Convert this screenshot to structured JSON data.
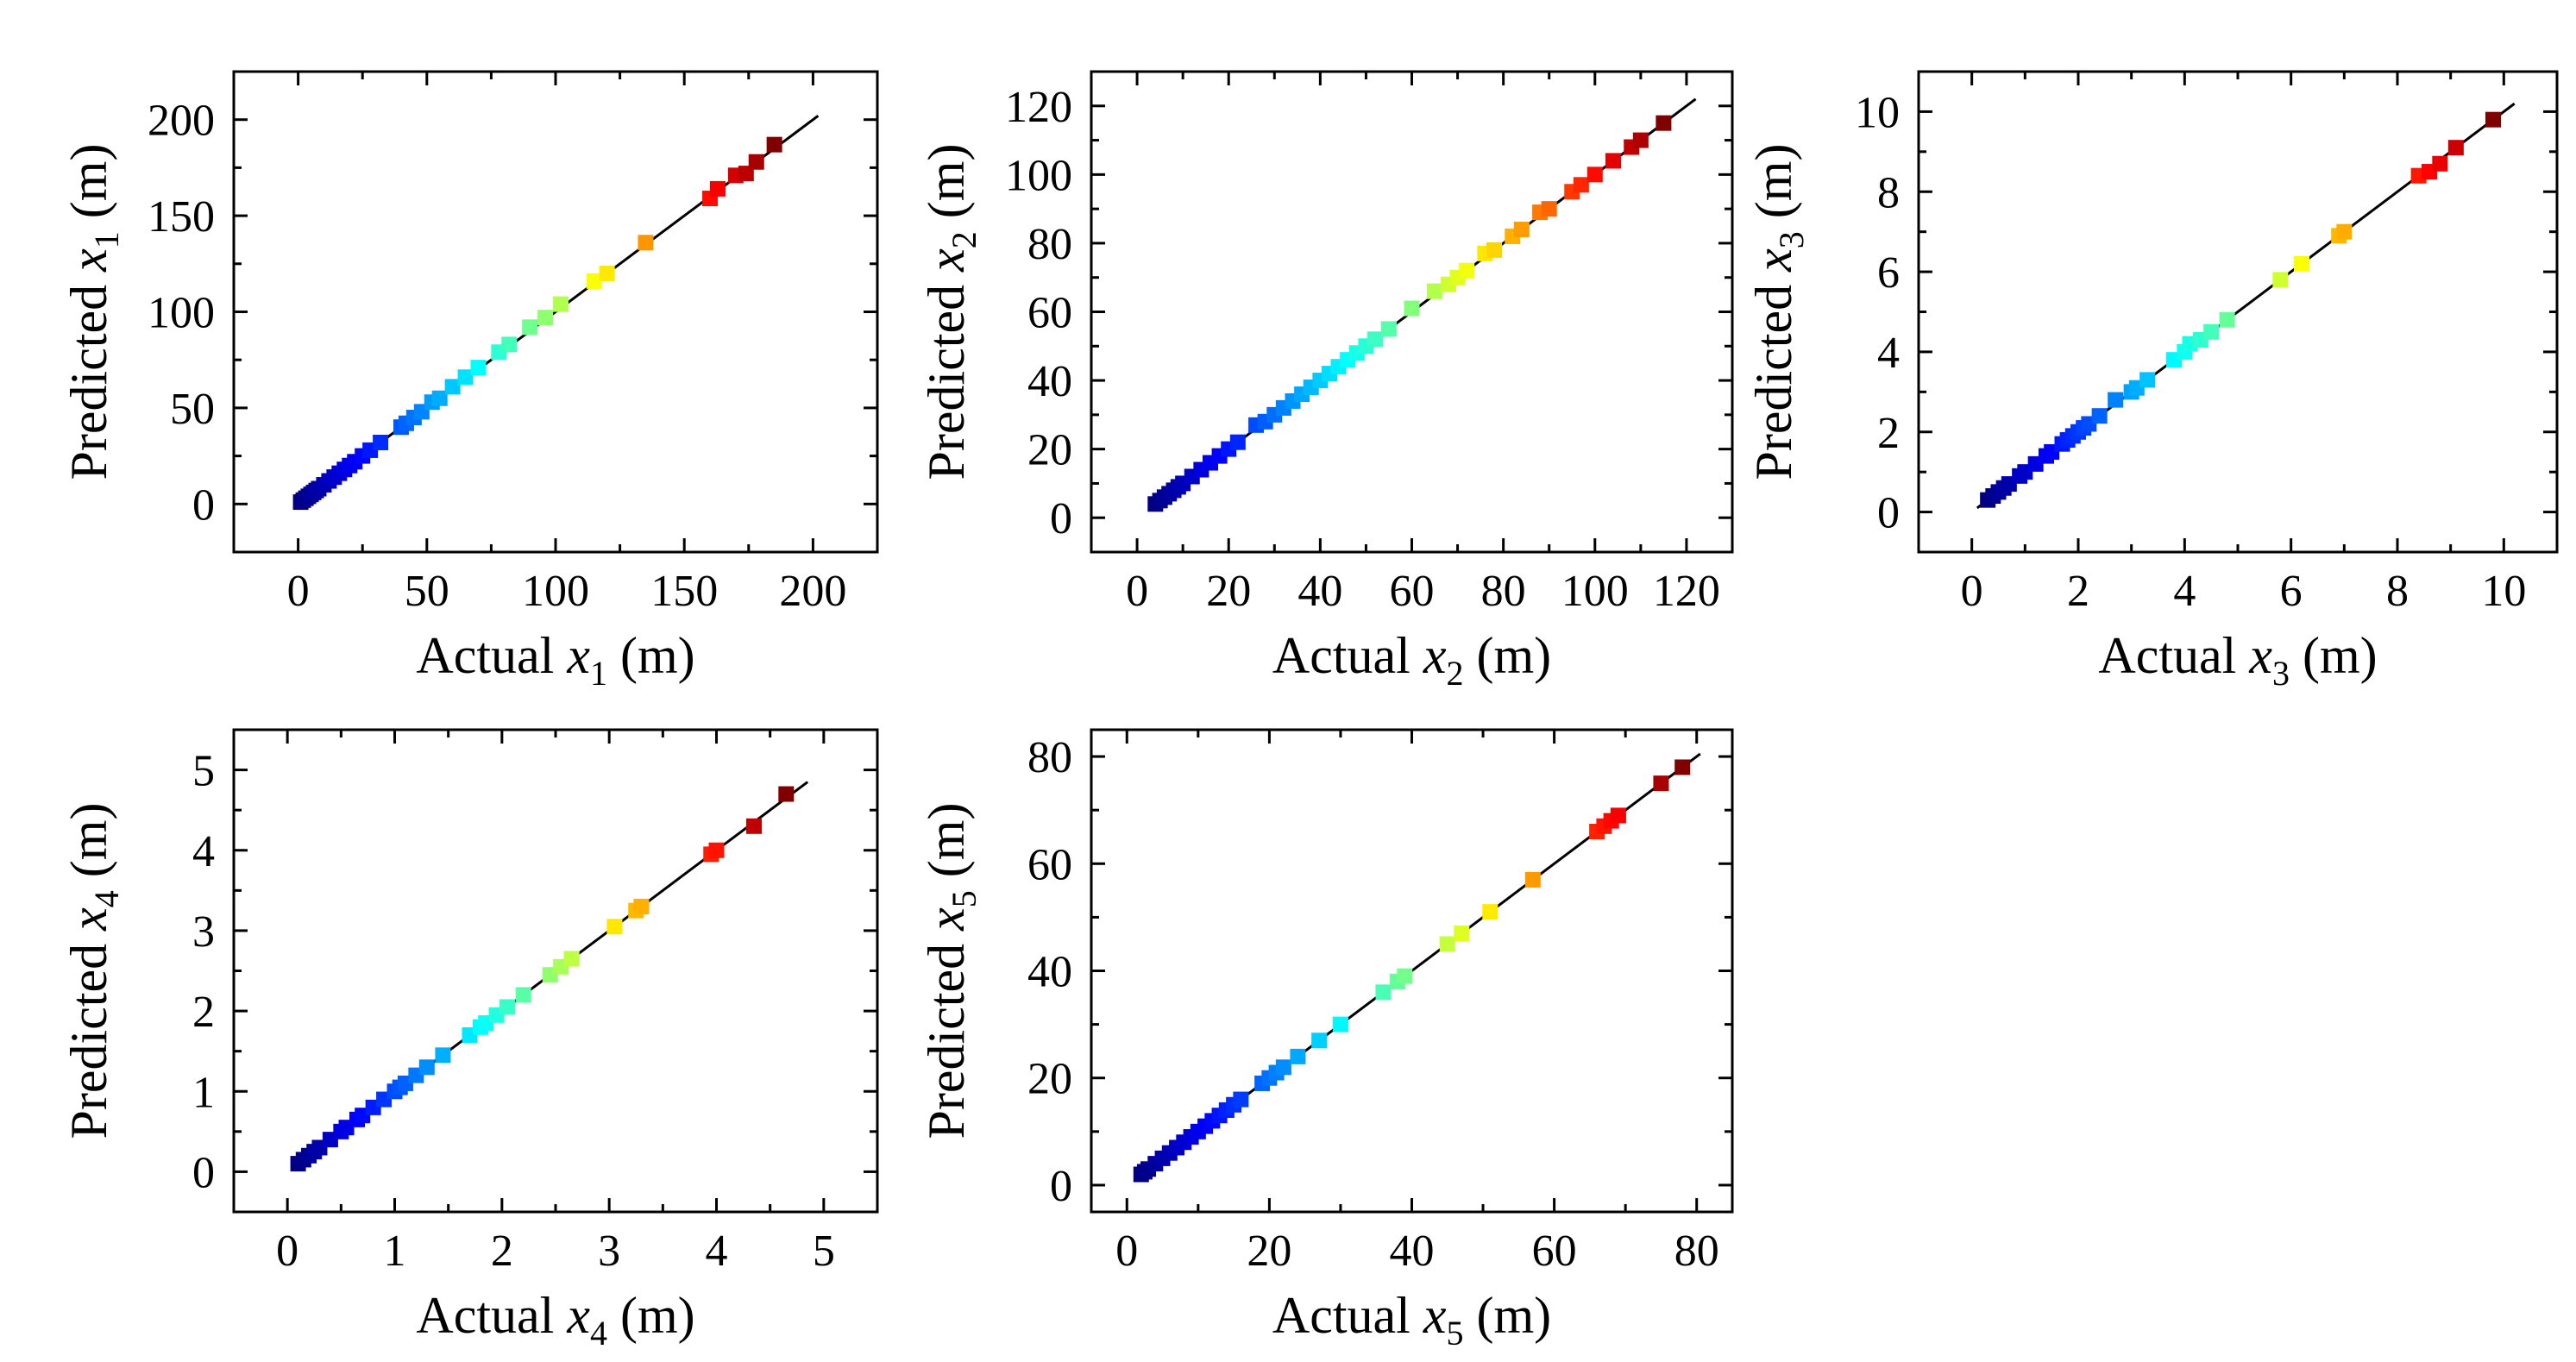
{
  "figure": {
    "background": "#ffffff"
  },
  "chart_data": [
    {
      "id": "x1",
      "type": "scatter",
      "xlabel": {
        "prefix": "Actual ",
        "var": "x",
        "sub": "1",
        "unit": " (m)"
      },
      "ylabel": {
        "prefix": "Predicted ",
        "var": "x",
        "sub": "1",
        "unit": " (m)"
      },
      "xlim": [
        -25,
        225
      ],
      "ylim": [
        -25,
        225
      ],
      "xticks": [
        0,
        50,
        100,
        150,
        200
      ],
      "yticks": [
        0,
        50,
        100,
        150,
        200
      ],
      "xtick_labels": [
        "0",
        "50",
        "100",
        "150",
        "200"
      ],
      "ytick_labels": [
        "0",
        "50",
        "100",
        "150",
        "200"
      ],
      "reference_line": [
        0,
        202
      ],
      "points": [
        [
          1,
          1
        ],
        [
          2,
          2
        ],
        [
          3,
          3
        ],
        [
          4,
          4
        ],
        [
          5,
          5
        ],
        [
          6,
          6
        ],
        [
          7,
          7
        ],
        [
          8,
          8
        ],
        [
          10,
          10
        ],
        [
          12,
          12
        ],
        [
          14,
          14
        ],
        [
          16,
          16
        ],
        [
          18,
          18
        ],
        [
          20,
          20
        ],
        [
          22,
          22
        ],
        [
          25,
          25
        ],
        [
          28,
          28
        ],
        [
          32,
          32
        ],
        [
          40,
          40
        ],
        [
          42,
          42
        ],
        [
          45,
          45
        ],
        [
          48,
          48
        ],
        [
          52,
          53
        ],
        [
          55,
          55
        ],
        [
          60,
          61
        ],
        [
          65,
          66
        ],
        [
          70,
          71
        ],
        [
          78,
          79
        ],
        [
          82,
          83
        ],
        [
          90,
          92
        ],
        [
          96,
          97
        ],
        [
          102,
          104
        ],
        [
          115,
          116
        ],
        [
          120,
          120
        ],
        [
          135,
          136
        ],
        [
          160,
          159
        ],
        [
          163,
          164
        ],
        [
          170,
          171
        ],
        [
          174,
          172
        ],
        [
          178,
          178
        ],
        [
          185,
          187
        ]
      ]
    },
    {
      "id": "x2",
      "type": "scatter",
      "xlabel": {
        "prefix": "Actual ",
        "var": "x",
        "sub": "2",
        "unit": " (m)"
      },
      "ylabel": {
        "prefix": "Predicted ",
        "var": "x",
        "sub": "2",
        "unit": " (m)"
      },
      "xlim": [
        -10,
        130
      ],
      "ylim": [
        -10,
        130
      ],
      "xticks": [
        0,
        20,
        40,
        60,
        80,
        100,
        120
      ],
      "yticks": [
        0,
        20,
        40,
        60,
        80,
        100,
        120
      ],
      "xtick_labels": [
        "0",
        "20",
        "40",
        "60",
        "80",
        "100",
        "120"
      ],
      "ytick_labels": [
        "0",
        "20",
        "40",
        "60",
        "80",
        "100",
        "120"
      ],
      "reference_line": [
        3,
        122
      ],
      "points": [
        [
          4,
          4
        ],
        [
          5,
          5
        ],
        [
          6,
          6
        ],
        [
          7,
          7
        ],
        [
          8,
          8
        ],
        [
          9,
          9
        ],
        [
          10,
          10
        ],
        [
          12,
          12
        ],
        [
          14,
          14
        ],
        [
          16,
          16
        ],
        [
          18,
          18
        ],
        [
          20,
          20
        ],
        [
          22,
          22
        ],
        [
          26,
          27
        ],
        [
          28,
          28
        ],
        [
          30,
          30
        ],
        [
          32,
          32
        ],
        [
          34,
          34
        ],
        [
          36,
          36
        ],
        [
          38,
          38
        ],
        [
          40,
          40
        ],
        [
          42,
          42
        ],
        [
          44,
          44
        ],
        [
          46,
          46
        ],
        [
          48,
          48
        ],
        [
          50,
          50
        ],
        [
          52,
          52
        ],
        [
          55,
          55
        ],
        [
          60,
          61
        ],
        [
          65,
          66
        ],
        [
          68,
          68
        ],
        [
          70,
          70
        ],
        [
          72,
          72
        ],
        [
          76,
          77
        ],
        [
          78,
          78
        ],
        [
          82,
          82
        ],
        [
          84,
          84
        ],
        [
          88,
          89
        ],
        [
          90,
          90
        ],
        [
          95,
          95
        ],
        [
          97,
          97
        ],
        [
          100,
          100
        ],
        [
          104,
          104
        ],
        [
          108,
          108
        ],
        [
          110,
          110
        ],
        [
          115,
          115
        ]
      ]
    },
    {
      "id": "x3",
      "type": "scatter",
      "xlabel": {
        "prefix": "Actual ",
        "var": "x",
        "sub": "3",
        "unit": " (m)"
      },
      "ylabel": {
        "prefix": "Predicted ",
        "var": "x",
        "sub": "3",
        "unit": " (m)"
      },
      "xlim": [
        -1,
        11
      ],
      "ylim": [
        -1,
        11
      ],
      "xticks": [
        0,
        2,
        4,
        6,
        8,
        10
      ],
      "yticks": [
        0,
        2,
        4,
        6,
        8,
        10
      ],
      "xtick_labels": [
        "0",
        "2",
        "4",
        "6",
        "8",
        "10"
      ],
      "ytick_labels": [
        "0",
        "2",
        "4",
        "6",
        "8",
        "10"
      ],
      "reference_line": [
        0.1,
        10.2
      ],
      "points": [
        [
          0.3,
          0.3
        ],
        [
          0.4,
          0.4
        ],
        [
          0.5,
          0.5
        ],
        [
          0.6,
          0.6
        ],
        [
          0.7,
          0.7
        ],
        [
          0.9,
          0.9
        ],
        [
          1.0,
          1.0
        ],
        [
          1.2,
          1.2
        ],
        [
          1.4,
          1.4
        ],
        [
          1.5,
          1.5
        ],
        [
          1.7,
          1.7
        ],
        [
          1.8,
          1.8
        ],
        [
          1.9,
          1.9
        ],
        [
          2.0,
          2.0
        ],
        [
          2.1,
          2.1
        ],
        [
          2.2,
          2.2
        ],
        [
          2.4,
          2.4
        ],
        [
          2.7,
          2.8
        ],
        [
          3.0,
          3.0
        ],
        [
          3.1,
          3.1
        ],
        [
          3.3,
          3.3
        ],
        [
          3.8,
          3.8
        ],
        [
          4.0,
          4.0
        ],
        [
          4.1,
          4.2
        ],
        [
          4.3,
          4.3
        ],
        [
          4.5,
          4.5
        ],
        [
          4.8,
          4.8
        ],
        [
          5.8,
          5.8
        ],
        [
          6.2,
          6.2
        ],
        [
          6.9,
          6.9
        ],
        [
          7.0,
          7.0
        ],
        [
          8.4,
          8.4
        ],
        [
          8.6,
          8.5
        ],
        [
          8.8,
          8.7
        ],
        [
          9.1,
          9.1
        ],
        [
          9.8,
          9.8
        ]
      ]
    },
    {
      "id": "x4",
      "type": "scatter",
      "xlabel": {
        "prefix": "Actual ",
        "var": "x",
        "sub": "4",
        "unit": " (m)"
      },
      "ylabel": {
        "prefix": "Predicted ",
        "var": "x",
        "sub": "4",
        "unit": " (m)"
      },
      "xlim": [
        -0.5,
        5.5
      ],
      "ylim": [
        -0.5,
        5.5
      ],
      "xticks": [
        0,
        1,
        2,
        3,
        4,
        5
      ],
      "yticks": [
        0,
        1,
        2,
        3,
        4,
        5
      ],
      "xtick_labels": [
        "0",
        "1",
        "2",
        "3",
        "4",
        "5"
      ],
      "ytick_labels": [
        "0",
        "1",
        "2",
        "3",
        "4",
        "5"
      ],
      "reference_line": [
        0.05,
        4.85
      ],
      "points": [
        [
          0.1,
          0.1
        ],
        [
          0.15,
          0.15
        ],
        [
          0.2,
          0.2
        ],
        [
          0.25,
          0.25
        ],
        [
          0.3,
          0.3
        ],
        [
          0.4,
          0.4
        ],
        [
          0.5,
          0.5
        ],
        [
          0.55,
          0.55
        ],
        [
          0.65,
          0.65
        ],
        [
          0.7,
          0.7
        ],
        [
          0.8,
          0.8
        ],
        [
          0.9,
          0.9
        ],
        [
          1.0,
          1.0
        ],
        [
          1.05,
          1.05
        ],
        [
          1.1,
          1.1
        ],
        [
          1.2,
          1.2
        ],
        [
          1.3,
          1.3
        ],
        [
          1.45,
          1.45
        ],
        [
          1.7,
          1.7
        ],
        [
          1.8,
          1.8
        ],
        [
          1.85,
          1.85
        ],
        [
          1.95,
          1.95
        ],
        [
          2.05,
          2.05
        ],
        [
          2.2,
          2.2
        ],
        [
          2.45,
          2.45
        ],
        [
          2.55,
          2.55
        ],
        [
          2.65,
          2.65
        ],
        [
          3.05,
          3.05
        ],
        [
          3.25,
          3.25
        ],
        [
          3.3,
          3.3
        ],
        [
          3.95,
          3.95
        ],
        [
          4.0,
          4.0
        ],
        [
          4.35,
          4.3
        ],
        [
          4.65,
          4.7
        ]
      ]
    },
    {
      "id": "x5",
      "type": "scatter",
      "xlabel": {
        "prefix": "Actual ",
        "var": "x",
        "sub": "5",
        "unit": " (m)"
      },
      "ylabel": {
        "prefix": "Predicted ",
        "var": "x",
        "sub": "5",
        "unit": " (m)"
      },
      "xlim": [
        -5,
        85
      ],
      "ylim": [
        -5,
        85
      ],
      "xticks": [
        0,
        20,
        40,
        60,
        80
      ],
      "yticks": [
        0,
        20,
        40,
        60,
        80
      ],
      "xtick_labels": [
        "0",
        "20",
        "40",
        "60",
        "80"
      ],
      "ytick_labels": [
        "0",
        "20",
        "40",
        "60",
        "80"
      ],
      "reference_line": [
        1.5,
        80.5
      ],
      "points": [
        [
          2,
          2
        ],
        [
          2.5,
          2.5
        ],
        [
          3,
          3
        ],
        [
          4,
          4
        ],
        [
          5,
          5
        ],
        [
          6,
          6
        ],
        [
          7,
          7
        ],
        [
          8,
          8
        ],
        [
          9,
          9
        ],
        [
          10,
          10
        ],
        [
          11,
          11
        ],
        [
          12,
          12
        ],
        [
          13,
          13
        ],
        [
          14,
          14
        ],
        [
          15,
          15
        ],
        [
          16,
          16
        ],
        [
          19,
          19
        ],
        [
          20,
          20
        ],
        [
          21,
          21
        ],
        [
          22,
          22
        ],
        [
          24,
          24
        ],
        [
          27,
          27
        ],
        [
          30,
          30
        ],
        [
          36,
          36
        ],
        [
          38,
          38
        ],
        [
          39,
          39
        ],
        [
          45,
          45
        ],
        [
          47,
          47
        ],
        [
          51,
          51
        ],
        [
          57,
          57
        ],
        [
          66,
          66
        ],
        [
          67,
          67
        ],
        [
          68,
          68
        ],
        [
          69,
          69
        ],
        [
          75,
          75
        ],
        [
          78,
          78
        ]
      ]
    }
  ]
}
